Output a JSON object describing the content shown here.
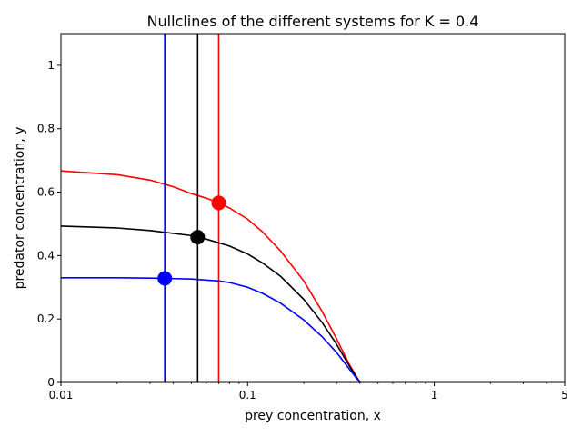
{
  "chart_data": {
    "type": "line",
    "title": "Nullclines of the different systems for K = 0.4",
    "xlabel": "prey concentration, x",
    "ylabel": "predator concentration, y",
    "xscale": "log",
    "xlim": [
      0.01,
      5
    ],
    "ylim": [
      0,
      1.1
    ],
    "grid": false,
    "xticks": [
      {
        "value": 0.01,
        "label": "0.01"
      },
      {
        "value": 0.1,
        "label": "0.1"
      },
      {
        "value": 1,
        "label": "1"
      },
      {
        "value": 5,
        "label": "5"
      }
    ],
    "yticks": [
      {
        "value": 0,
        "label": "0"
      },
      {
        "value": 0.2,
        "label": "0.2"
      },
      {
        "value": 0.4,
        "label": "0.4"
      },
      {
        "value": 0.6,
        "label": "0.6"
      },
      {
        "value": 0.8,
        "label": "0.8"
      },
      {
        "value": 1,
        "label": "1"
      }
    ],
    "series": [
      {
        "color": "#ff0000",
        "x": [
          0.01,
          0.02,
          0.03,
          0.04,
          0.05,
          0.06,
          0.07,
          0.08,
          0.1,
          0.12,
          0.15,
          0.2,
          0.25,
          0.3,
          0.35,
          0.38,
          0.4
        ],
        "y": [
          0.667,
          0.655,
          0.638,
          0.617,
          0.595,
          0.581,
          0.566,
          0.55,
          0.515,
          0.475,
          0.415,
          0.32,
          0.225,
          0.137,
          0.058,
          0.022,
          0.0
        ],
        "vertical_line_x": 0.07,
        "equilibrium": {
          "x": 0.07,
          "y": 0.566
        }
      },
      {
        "color": "#000000",
        "x": [
          0.01,
          0.02,
          0.03,
          0.04,
          0.05,
          0.054,
          0.06,
          0.08,
          0.1,
          0.12,
          0.15,
          0.2,
          0.25,
          0.3,
          0.35,
          0.38,
          0.4
        ],
        "y": [
          0.493,
          0.487,
          0.479,
          0.47,
          0.463,
          0.458,
          0.452,
          0.43,
          0.405,
          0.377,
          0.335,
          0.262,
          0.19,
          0.12,
          0.053,
          0.02,
          0.0
        ],
        "vertical_line_x": 0.054,
        "equilibrium": {
          "x": 0.054,
          "y": 0.458
        }
      },
      {
        "color": "#0000ff",
        "x": [
          0.01,
          0.02,
          0.03,
          0.036,
          0.05,
          0.07,
          0.08,
          0.1,
          0.12,
          0.15,
          0.2,
          0.25,
          0.3,
          0.35,
          0.38,
          0.4
        ],
        "y": [
          0.33,
          0.33,
          0.329,
          0.328,
          0.326,
          0.32,
          0.315,
          0.3,
          0.281,
          0.25,
          0.197,
          0.145,
          0.094,
          0.043,
          0.016,
          0.0
        ],
        "vertical_line_x": 0.036,
        "equilibrium": {
          "x": 0.036,
          "y": 0.328
        }
      }
    ]
  }
}
